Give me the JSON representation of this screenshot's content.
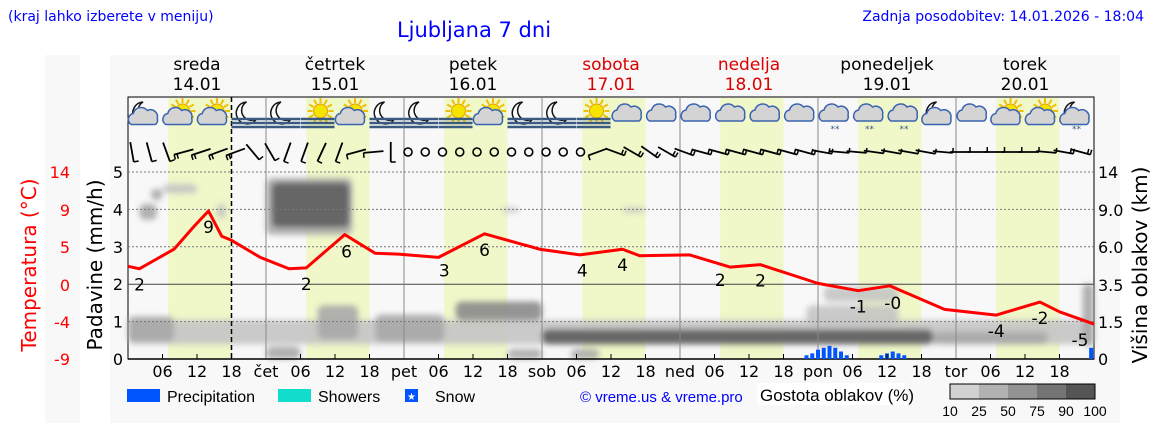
{
  "header": {
    "menu_hint": "(kraj lahko izberete v meniju)",
    "title": "Ljubljana 7 dni",
    "updated": "Zadnja posodobitev: 14.01.2026 - 18:04"
  },
  "colors": {
    "link_blue": "#0000ff",
    "temperature": "#ff0000",
    "weekend": "#dd0000",
    "daylight": "#f0f7c8",
    "precipitation": "#0055ff",
    "showers": "#11ddcc",
    "snow": "#0055ff"
  },
  "chart_data": {
    "type": "line",
    "days": [
      {
        "name": "sreda",
        "date": "14.01",
        "weekend": false
      },
      {
        "name": "četrtek",
        "date": "15.01",
        "weekend": false
      },
      {
        "name": "petek",
        "date": "16.01",
        "weekend": false
      },
      {
        "name": "sobota",
        "date": "17.01",
        "weekend": true
      },
      {
        "name": "nedelja",
        "date": "18.01",
        "weekend": true
      },
      {
        "name": "ponedeljek",
        "date": "19.01",
        "weekend": false
      },
      {
        "name": "torek",
        "date": "20.01",
        "weekend": false
      }
    ],
    "day_abbr": [
      "",
      "čet",
      "pet",
      "sob",
      "ned",
      "pon",
      "tor"
    ],
    "hour_ticks": [
      "06",
      "12",
      "18"
    ],
    "now_marker_hour": 18,
    "daylight_hours": [
      7,
      18
    ],
    "left_axis_temp": {
      "label": "Temperatura (°C)",
      "ticks": [
        "14",
        "9",
        "5",
        "0",
        "-4",
        "-9"
      ],
      "range": [
        -9,
        14
      ]
    },
    "left_axis_precip": {
      "label": "Padavine (mm/h)",
      "ticks": [
        "0",
        "1",
        "2",
        "3",
        "4",
        "5"
      ],
      "range": [
        0,
        5
      ]
    },
    "right_axis_cloud": {
      "label": "Višina oblakov (km)",
      "ticks": [
        "0",
        "1.5",
        "3.5",
        "6.0",
        "9.0",
        "14"
      ]
    },
    "temperature": {
      "hours": [
        0,
        2,
        8,
        11.6,
        14,
        16.3,
        18,
        23,
        28,
        31,
        37.7,
        43,
        47,
        54,
        62,
        71.6,
        78.6,
        86,
        89,
        97.7,
        104.7,
        110,
        120,
        127,
        132.5,
        142,
        151,
        158.6,
        162,
        168
      ],
      "values": [
        2.3,
        2.0,
        4.4,
        7.3,
        9.1,
        6.0,
        5.5,
        3.4,
        2.0,
        2.1,
        6.2,
        3.9,
        3.8,
        3.4,
        6.3,
        4.4,
        3.7,
        4.4,
        3.6,
        3.7,
        2.2,
        2.5,
        0.2,
        -0.7,
        -0.1,
        -3.0,
        -3.7,
        -2.1,
        -3.3,
        -4.8
      ]
    },
    "temp_labels": [
      {
        "hour": 2,
        "text": "2",
        "pos": "below"
      },
      {
        "hour": 14,
        "text": "9",
        "pos": "below"
      },
      {
        "hour": 31,
        "text": "2",
        "pos": "below"
      },
      {
        "hour": 38,
        "text": "6",
        "pos": "below"
      },
      {
        "hour": 55,
        "text": "3",
        "pos": "below"
      },
      {
        "hour": 62,
        "text": "6",
        "pos": "below"
      },
      {
        "hour": 79,
        "text": "4",
        "pos": "below"
      },
      {
        "hour": 86,
        "text": "4",
        "pos": "below"
      },
      {
        "hour": 103,
        "text": "2",
        "pos": "below"
      },
      {
        "hour": 110,
        "text": "2",
        "pos": "below"
      },
      {
        "hour": 127,
        "text": "-1",
        "pos": "below"
      },
      {
        "hour": 133,
        "text": "-0",
        "pos": "below"
      },
      {
        "hour": 151,
        "text": "-4",
        "pos": "below"
      },
      {
        "hour": 158.6,
        "text": "-2",
        "pos": "below"
      },
      {
        "hour": 168,
        "text": "-5",
        "pos": "below"
      }
    ],
    "weather_icons": [
      "moon-cloud",
      "sun-cloud",
      "sun-cloud",
      "moon-fog",
      "moon-fog",
      "sun-fog",
      "sun-cloud",
      "moon-fog",
      "moon-fog",
      "sun-fog",
      "sun-cloud",
      "moon-fog",
      "moon-fog",
      "sun-fog",
      "cloud",
      "cloud",
      "cloud",
      "cloud",
      "cloud",
      "cloud",
      "cloud-snow",
      "cloud-snow",
      "cloud-snow",
      "moon-cloud",
      "cloud",
      "sun-cloud",
      "sun-cloud",
      "moon-cloud-snow"
    ],
    "wind": [
      [
        350,
        1
      ],
      [
        345,
        1
      ],
      [
        340,
        1
      ],
      [
        75,
        2
      ],
      [
        72,
        2
      ],
      [
        70,
        2
      ],
      [
        70,
        2
      ],
      [
        320,
        1
      ],
      [
        330,
        1
      ],
      [
        20,
        1
      ],
      [
        20,
        1
      ],
      [
        25,
        1
      ],
      [
        20,
        1
      ],
      [
        75,
        1
      ],
      [
        85,
        1
      ],
      [
        0,
        1
      ],
      [
        0,
        0
      ],
      [
        0,
        0
      ],
      [
        0,
        0
      ],
      [
        0,
        0
      ],
      [
        0,
        0
      ],
      [
        0,
        0
      ],
      [
        0,
        0
      ],
      [
        0,
        0
      ],
      [
        0,
        0
      ],
      [
        0,
        0
      ],
      [
        0,
        0
      ],
      [
        70,
        1
      ],
      [
        290,
        2
      ],
      [
        300,
        2
      ],
      [
        305,
        2
      ],
      [
        300,
        2
      ],
      [
        290,
        2
      ],
      [
        285,
        2
      ],
      [
        285,
        2
      ],
      [
        285,
        2
      ],
      [
        285,
        2
      ],
      [
        285,
        2
      ],
      [
        285,
        2
      ],
      [
        285,
        2
      ],
      [
        280,
        2
      ],
      [
        275,
        1
      ],
      [
        275,
        1
      ],
      [
        278,
        1
      ],
      [
        280,
        1
      ],
      [
        280,
        1
      ],
      [
        280,
        1
      ],
      [
        275,
        1
      ],
      [
        270,
        1
      ],
      [
        270,
        1
      ],
      [
        270,
        1
      ],
      [
        270,
        1
      ],
      [
        270,
        1
      ],
      [
        275,
        1
      ],
      [
        280,
        2
      ],
      [
        285,
        2
      ]
    ],
    "clouds": [
      {
        "h0": 2,
        "h1": 5,
        "km0": 8.2,
        "km1": 9.8,
        "density": 50
      },
      {
        "h0": 4,
        "h1": 6,
        "km0": 10.3,
        "km1": 11.8,
        "density": 50
      },
      {
        "h0": 6,
        "h1": 12,
        "km0": 11.2,
        "km1": 12.4,
        "density": 25
      },
      {
        "h0": 15.5,
        "h1": 17,
        "km0": 8.3,
        "km1": 9.8,
        "density": 25
      },
      {
        "h0": 25,
        "h1": 38.5,
        "km0": 7.6,
        "km1": 12.6,
        "density": 90
      },
      {
        "h0": 24,
        "h1": 39,
        "km0": 7.0,
        "km1": 13.2,
        "density": 50
      },
      {
        "h0": 65,
        "h1": 68,
        "km0": 8.8,
        "km1": 9.3,
        "density": 25
      },
      {
        "h0": 86,
        "h1": 90,
        "km0": 8.8,
        "km1": 9.3,
        "density": 25
      },
      {
        "h0": 0,
        "h1": 168,
        "km0": 0.6,
        "km1": 1.6,
        "density": 25
      },
      {
        "h0": 0,
        "h1": 8,
        "km0": 0.7,
        "km1": 1.8,
        "density": 50
      },
      {
        "h0": 33,
        "h1": 40,
        "km0": 0.8,
        "km1": 2.4,
        "density": 50
      },
      {
        "h0": 43,
        "h1": 55,
        "km0": 0.7,
        "km1": 1.9,
        "density": 50
      },
      {
        "h0": 57,
        "h1": 72,
        "km0": 1.6,
        "km1": 2.6,
        "density": 75
      },
      {
        "h0": 72,
        "h1": 140,
        "km0": 0.6,
        "km1": 1.2,
        "density": 90
      },
      {
        "h0": 140,
        "h1": 160,
        "km0": 0.6,
        "km1": 1.1,
        "density": 50
      },
      {
        "h0": 118,
        "h1": 134,
        "km0": 1.4,
        "km1": 2.4,
        "density": 25
      },
      {
        "h0": 121,
        "h1": 134,
        "km0": 2.6,
        "km1": 3.4,
        "density": 25
      },
      {
        "h0": 166,
        "h1": 168,
        "km0": 0.5,
        "km1": 3.6,
        "density": 50
      },
      {
        "h0": 24,
        "h1": 30,
        "km0": 0,
        "km1": 0.5,
        "density": 50
      },
      {
        "h0": 66,
        "h1": 72,
        "km0": 0,
        "km1": 0.4,
        "density": 50
      },
      {
        "h0": 77,
        "h1": 82,
        "km0": 0,
        "km1": 0.4,
        "density": 50
      }
    ],
    "snow_precip": {
      "hours": [
        118,
        119,
        120,
        121,
        122,
        123,
        124,
        125,
        131,
        132,
        133,
        134,
        135,
        167.5
      ],
      "values": [
        0.1,
        0.15,
        0.25,
        0.3,
        0.35,
        0.3,
        0.2,
        0.1,
        0.1,
        0.15,
        0.2,
        0.15,
        0.1,
        0.3
      ]
    }
  },
  "legend": {
    "precipitation": "Precipitation",
    "showers": "Showers",
    "snow": "Snow",
    "copyright": "© vreme.us & vreme.pro",
    "density_title": "Gostota oblakov (%)",
    "density_scale": [
      "10",
      "25",
      "50",
      "75",
      "90",
      "100"
    ],
    "density_colors": [
      "#d2d2d2",
      "#b2b2b2",
      "#939393",
      "#747474",
      "#555555"
    ]
  }
}
